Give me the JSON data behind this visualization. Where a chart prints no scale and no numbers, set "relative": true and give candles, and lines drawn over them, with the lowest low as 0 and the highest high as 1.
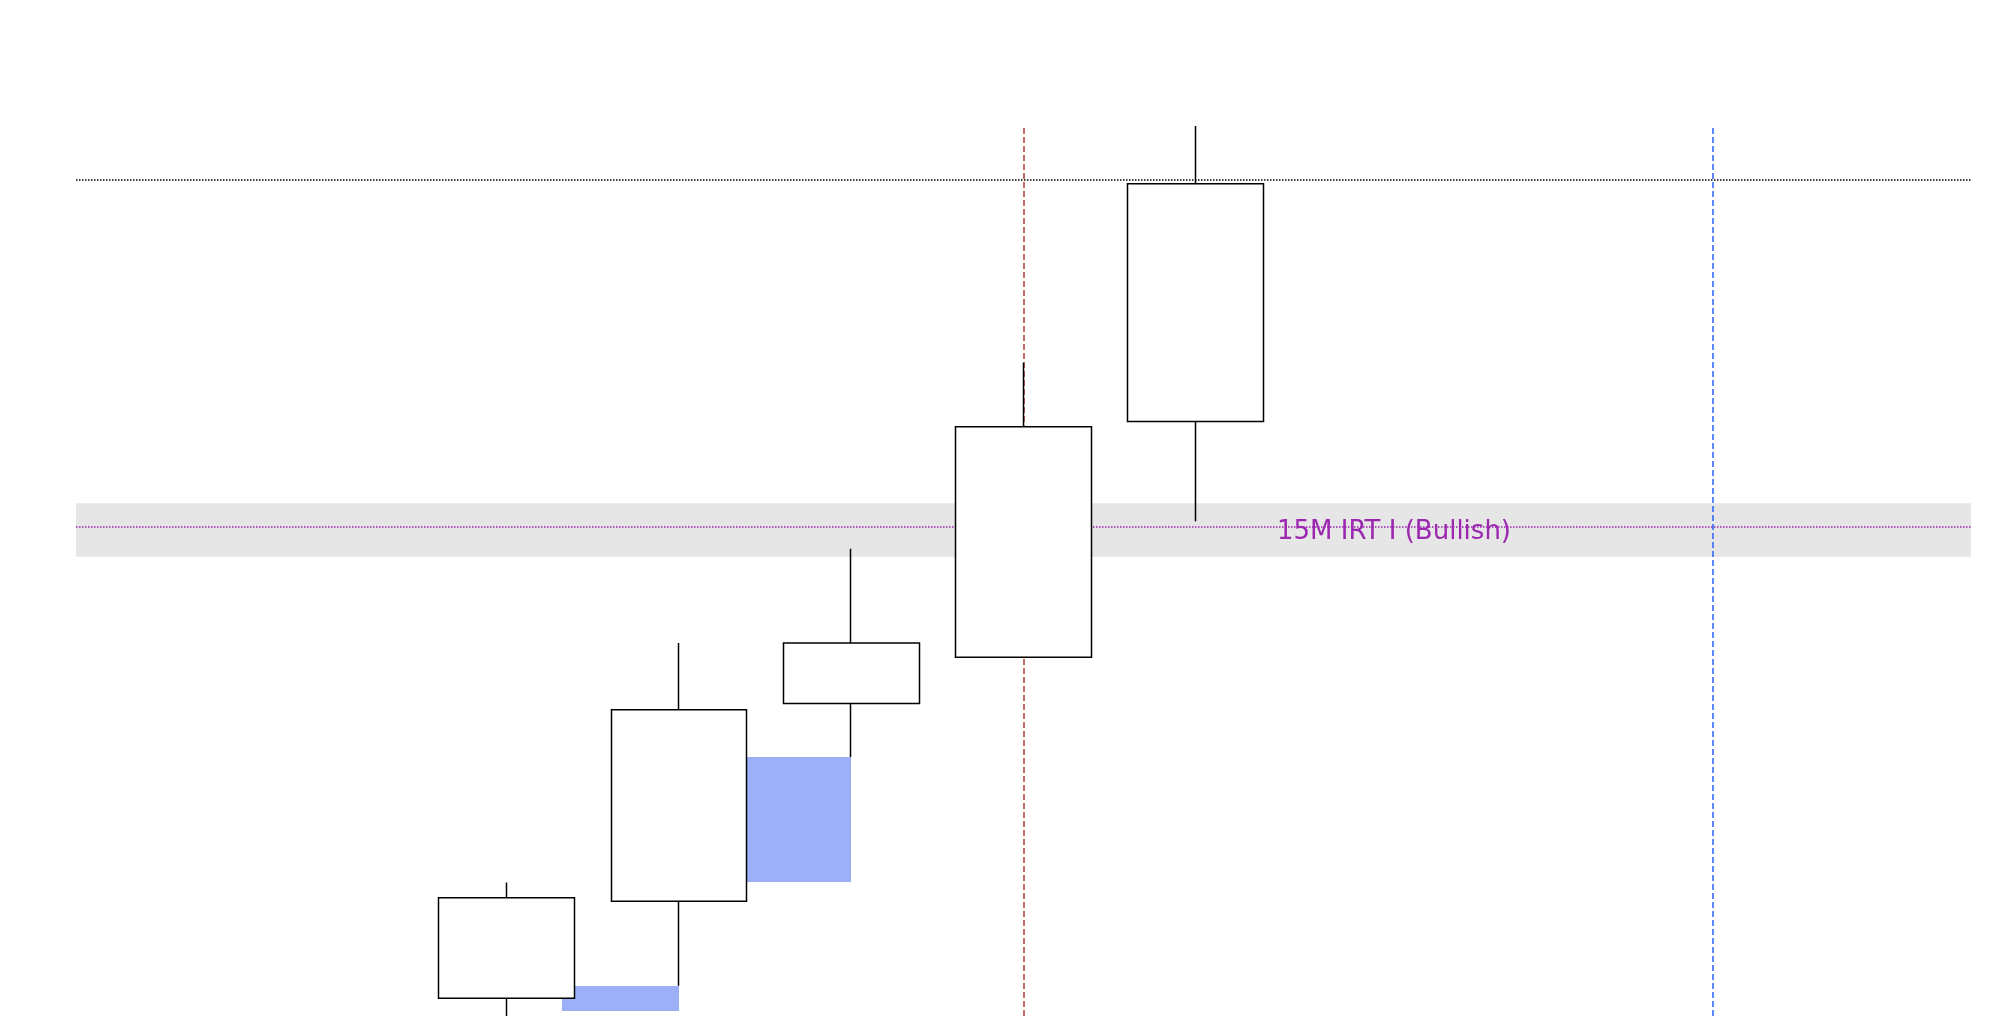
{
  "chart_data": {
    "type": "candlestick",
    "relative": true,
    "categories": [
      null,
      null,
      null,
      null,
      null,
      null,
      null,
      null,
      null,
      null,
      null
    ],
    "ohlc": [
      null,
      null,
      [
        0.02,
        0.15,
        0,
        0.133
      ],
      [
        0.129,
        0.419,
        0.034,
        0.344
      ],
      [
        0.351,
        0.525,
        0.291,
        0.419
      ],
      [
        0.403,
        0.734,
        0.403,
        0.662
      ],
      [
        0.668,
        1,
        0.556,
        0.935
      ],
      null,
      null,
      null,
      null
    ],
    "color": "#ffffff",
    "ref_lines": [
      {
        "axis": "y",
        "value": 0.94,
        "color": "#000000",
        "line_style": "dotted"
      },
      {
        "axis": "y",
        "value": 0.546,
        "color": "#9c27b0",
        "line_style": "dotted"
      }
    ],
    "bands": [
      {
        "axis": "y",
        "from": 0.516,
        "to": 0.576,
        "label": "15M IRT I (Bullish)",
        "color": "#e6e6e6"
      }
    ]
  }
}
